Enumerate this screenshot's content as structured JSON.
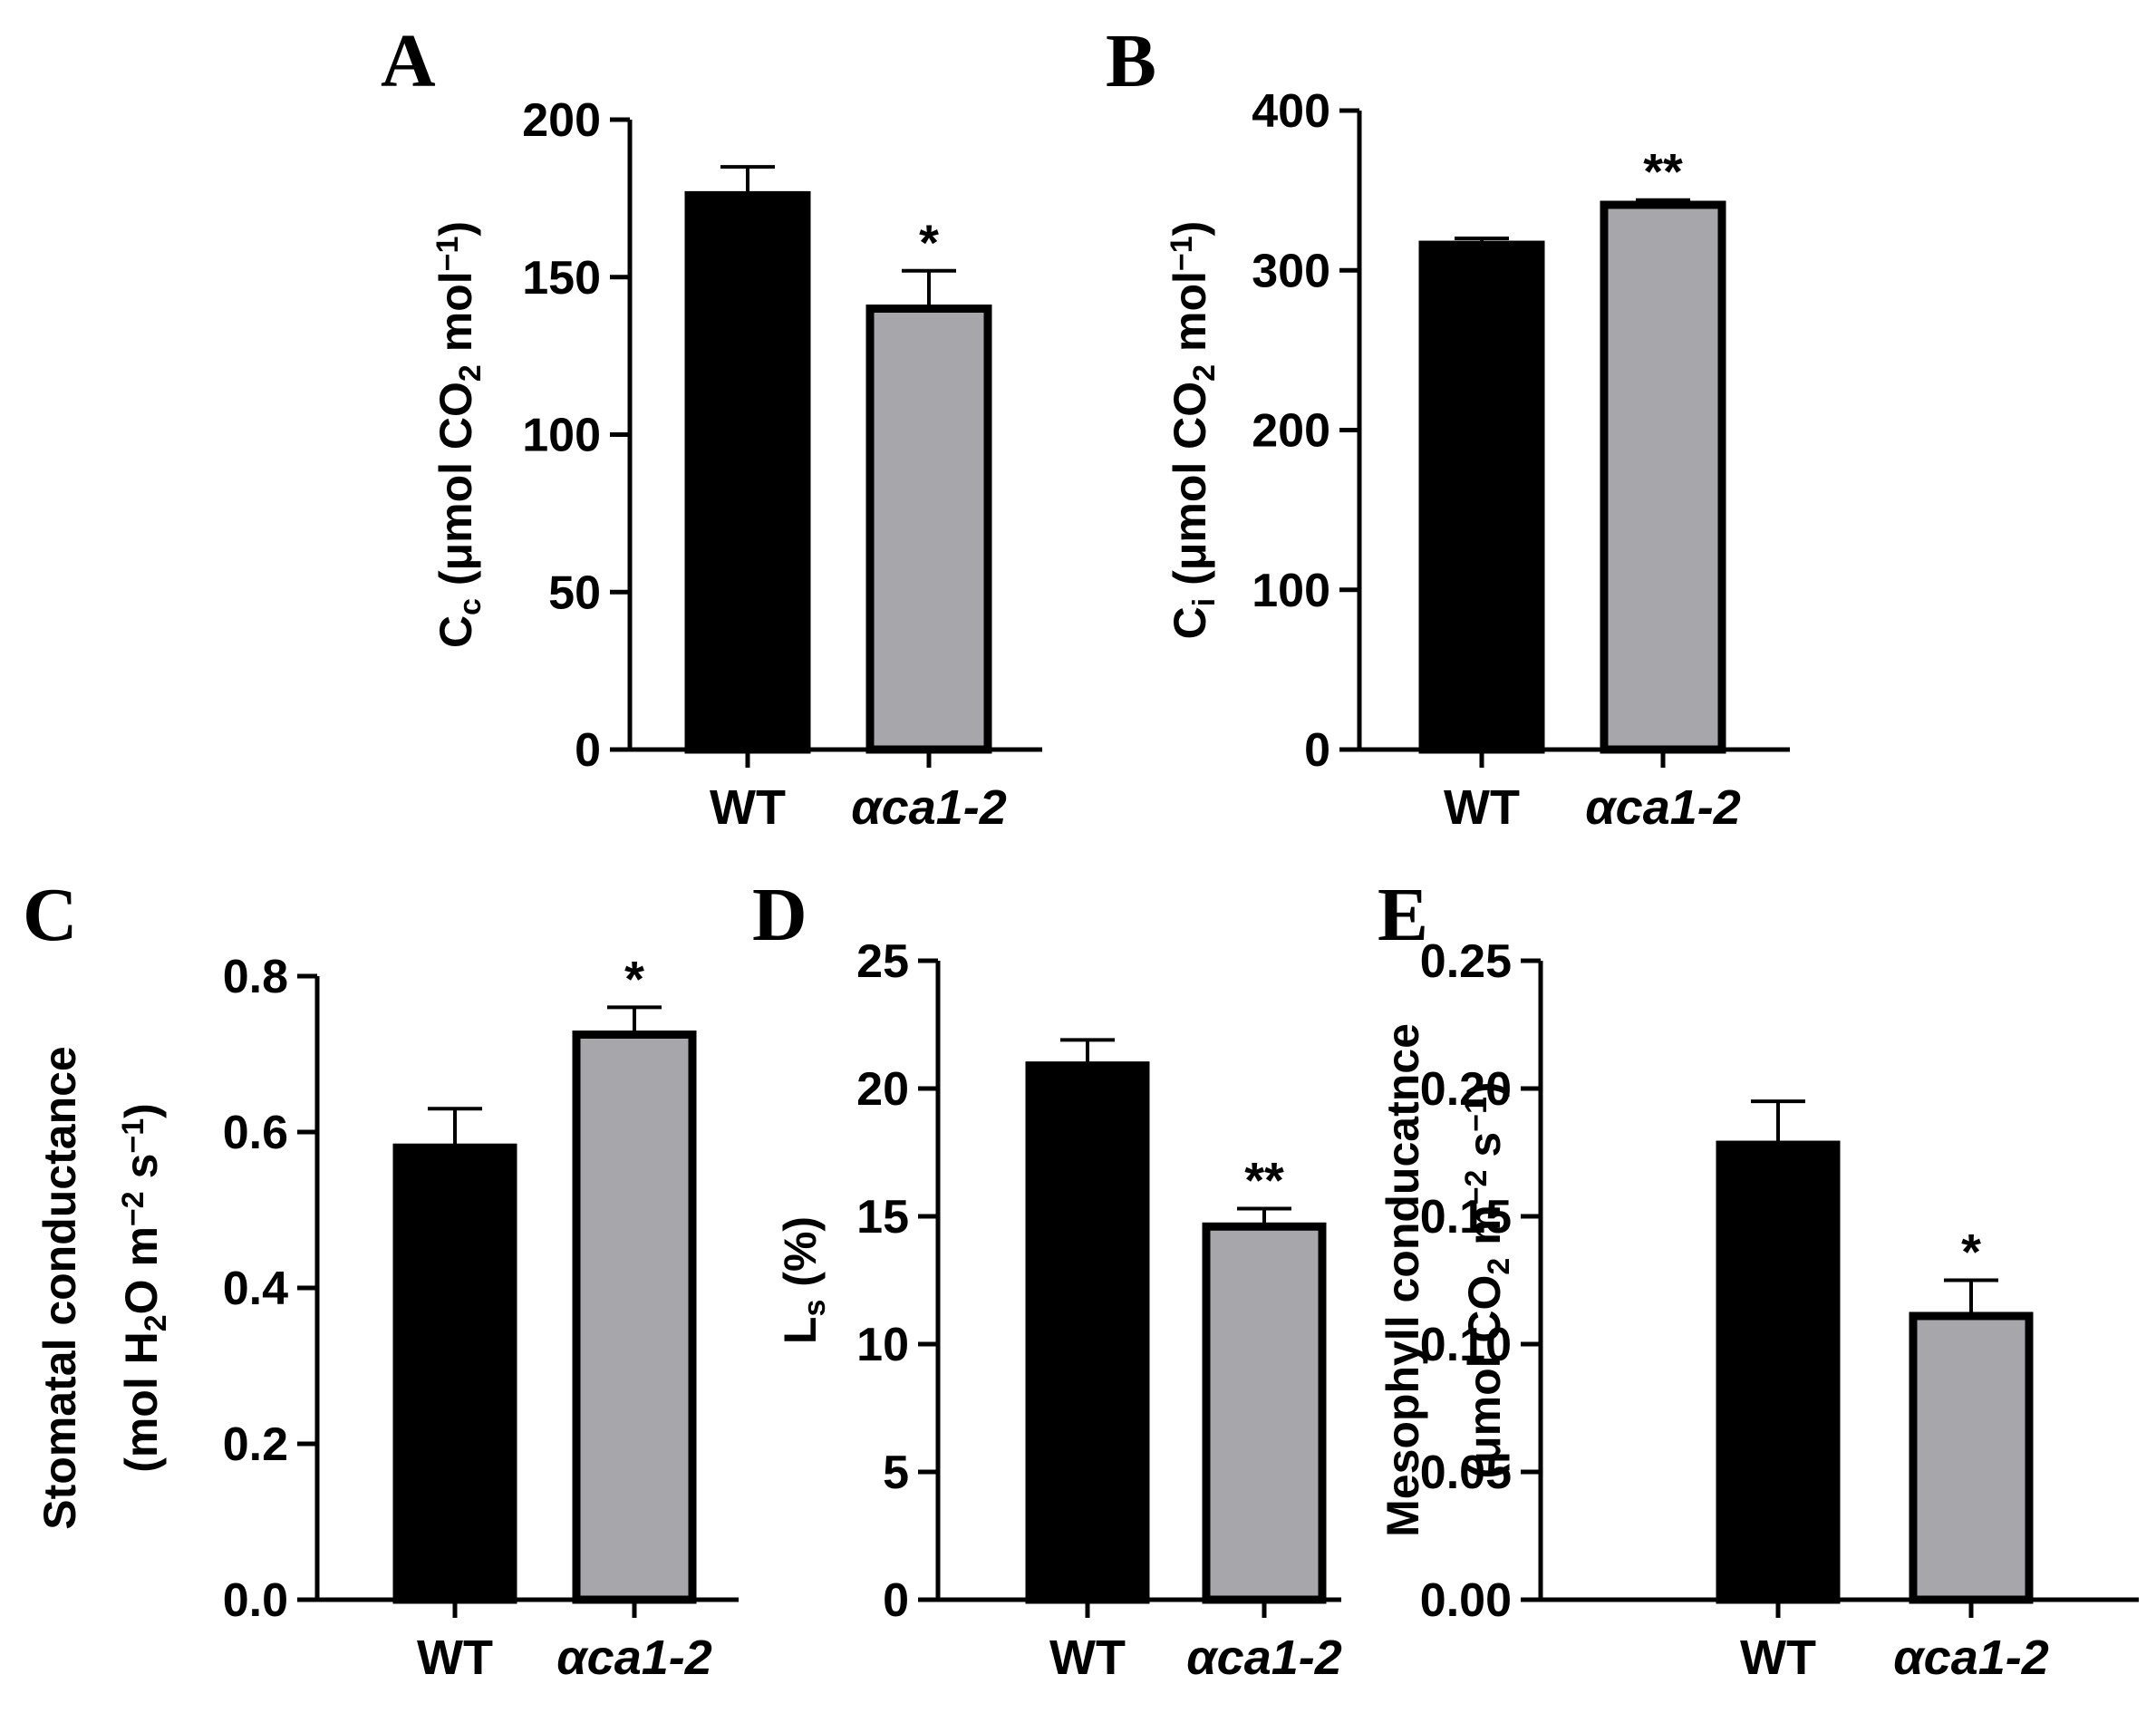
{
  "chart_data": [
    {
      "panel": "A",
      "type": "bar",
      "categories": [
        "WT",
        "αca1-2"
      ],
      "values": [
        176,
        140
      ],
      "errors": [
        9,
        12
      ],
      "colors": [
        "#000000",
        "#a7a7ab"
      ],
      "significance": [
        "",
        "*"
      ],
      "ylim": [
        0,
        200
      ],
      "yticks": [
        "0",
        "50",
        "100",
        "150",
        "200"
      ],
      "ylabel_lines": [
        [
          {
            "t": "C"
          },
          {
            "t": "c",
            "sub": true
          },
          {
            "t": " (μmol CO"
          },
          {
            "t": "2",
            "sub": true
          },
          {
            "t": " mol"
          },
          {
            "t": "−1",
            "sup": true
          },
          {
            "t": ")"
          }
        ]
      ]
    },
    {
      "panel": "B",
      "type": "bar",
      "categories": [
        "WT",
        "αca1-2"
      ],
      "values": [
        316,
        341
      ],
      "errors": [
        4,
        3
      ],
      "colors": [
        "#000000",
        "#a7a7ab"
      ],
      "significance": [
        "",
        "**"
      ],
      "ylim": [
        0,
        400
      ],
      "yticks": [
        "0",
        "100",
        "200",
        "300",
        "400"
      ],
      "ylabel_lines": [
        [
          {
            "t": "C"
          },
          {
            "t": "i",
            "sub": true
          },
          {
            "t": " (μmol CO"
          },
          {
            "t": "2",
            "sub": true
          },
          {
            "t": " mol"
          },
          {
            "t": "−1",
            "sup": true
          },
          {
            "t": ")"
          }
        ]
      ]
    },
    {
      "panel": "C",
      "type": "bar",
      "categories": [
        "WT",
        "αca1-2"
      ],
      "values": [
        0.58,
        0.725
      ],
      "errors": [
        0.05,
        0.035
      ],
      "colors": [
        "#000000",
        "#a7a7ab"
      ],
      "significance": [
        "",
        "*"
      ],
      "ylim": [
        0,
        0.8
      ],
      "yticks": [
        "0.0",
        "0.2",
        "0.4",
        "0.6",
        "0.8"
      ],
      "ylabel_lines": [
        [
          {
            "t": "Stomatal conductance"
          }
        ],
        [
          {
            "t": "(mol H"
          },
          {
            "t": "2",
            "sub": true
          },
          {
            "t": "O m"
          },
          {
            "t": "−2",
            "sup": true
          },
          {
            "t": " s"
          },
          {
            "t": "−1",
            "sup": true
          },
          {
            "t": ")"
          }
        ]
      ]
    },
    {
      "panel": "D",
      "type": "bar",
      "categories": [
        "WT",
        "αca1-2"
      ],
      "values": [
        20.9,
        14.6
      ],
      "errors": [
        1.0,
        0.7
      ],
      "colors": [
        "#000000",
        "#a7a7ab"
      ],
      "significance": [
        "",
        "**"
      ],
      "ylim": [
        0,
        25
      ],
      "yticks": [
        "0",
        "5",
        "10",
        "15",
        "20",
        "25"
      ],
      "ylabel_lines": [
        [
          {
            "t": "L"
          },
          {
            "t": "s",
            "sub": true
          },
          {
            "t": " (%)"
          }
        ]
      ]
    },
    {
      "panel": "E",
      "type": "bar",
      "categories": [
        "WT",
        "αca1-2"
      ],
      "values": [
        0.178,
        0.111
      ],
      "errors": [
        0.017,
        0.014
      ],
      "colors": [
        "#000000",
        "#a7a7ab"
      ],
      "significance": [
        "",
        "*"
      ],
      "ylim": [
        0,
        0.25
      ],
      "yticks": [
        "0.00",
        "0.05",
        "0.10",
        "0.15",
        "0.20",
        "0.25"
      ],
      "ylabel_lines": [
        [
          {
            "t": "Mesophyll conducatnce"
          }
        ],
        [
          {
            "t": "(μmol CO"
          },
          {
            "t": "2",
            "sub": true
          },
          {
            "t": " m"
          },
          {
            "t": "−2",
            "sup": true
          },
          {
            "t": " s"
          },
          {
            "t": "−1",
            "sup": true
          },
          {
            "t": ")"
          }
        ]
      ]
    }
  ]
}
